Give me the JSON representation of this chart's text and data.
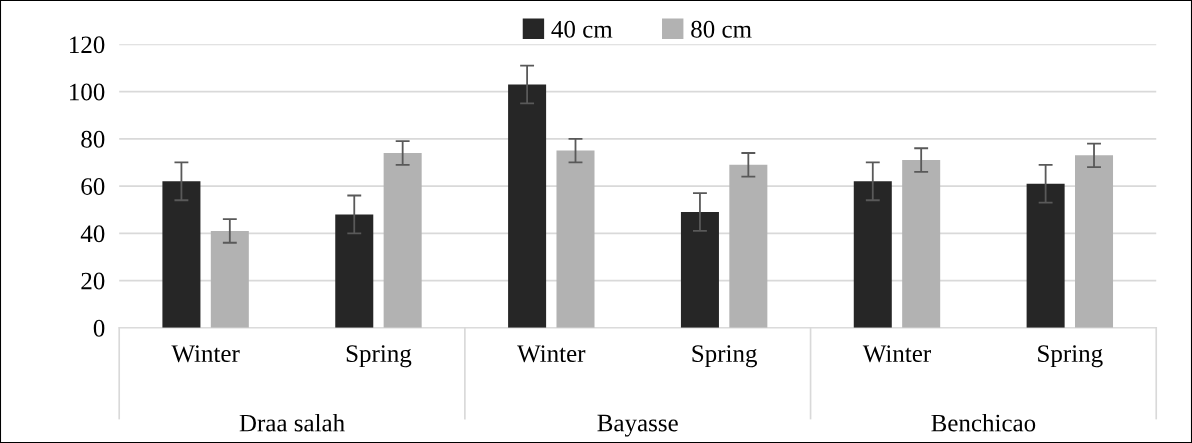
{
  "chart_data": {
    "type": "bar",
    "categories": [
      "Winter",
      "Spring",
      "Winter",
      "Spring",
      "Winter",
      "Spring"
    ],
    "series": [
      {
        "name": "40 cm",
        "color": "#262626",
        "values": [
          62,
          48,
          103,
          49,
          62,
          61
        ],
        "errors": [
          8,
          8,
          8,
          8,
          8,
          8
        ]
      },
      {
        "name": "80 cm",
        "color": "#b2b2b2",
        "values": [
          41,
          74,
          75,
          69,
          71,
          73
        ],
        "errors": [
          5,
          5,
          5,
          5,
          5,
          5
        ]
      }
    ],
    "annotations": [
      "Draa salah",
      "Bayasse",
      "Benchicao"
    ],
    "ylim": [
      0,
      120
    ],
    "yticks": [
      0,
      20,
      40,
      60,
      80,
      100,
      120
    ],
    "grid": "y",
    "legend": "top"
  }
}
